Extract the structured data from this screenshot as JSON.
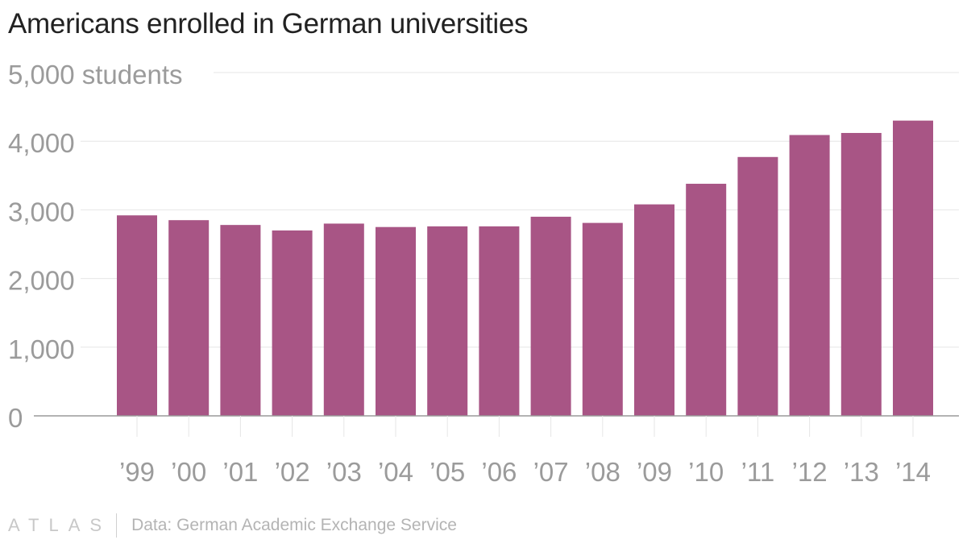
{
  "title": "Americans enrolled in German universities",
  "footer": {
    "logo": "ATLAS",
    "source": "Data: German Academic Exchange Service"
  },
  "colors": {
    "bar": "#a85585",
    "grid": "#e6e6e6",
    "axis": "#9a9a9a",
    "tick_text": "#9b9b9b"
  },
  "chart_data": {
    "type": "bar",
    "title": "Americans enrolled in German universities",
    "xlabel": "",
    "ylabel": "students",
    "ylim": [
      0,
      5000
    ],
    "y_ticks": [
      0,
      1000,
      2000,
      3000,
      4000,
      5000
    ],
    "y_tick_labels": [
      "0",
      "1,000",
      "2,000",
      "3,000",
      "4,000",
      "5,000 students"
    ],
    "categories": [
      "’99",
      "’00",
      "’01",
      "’02",
      "’03",
      "’04",
      "’05",
      "’06",
      "’07",
      "’08",
      "’09",
      "’10",
      "’11",
      "’12",
      "’13",
      "’14"
    ],
    "values": [
      2920,
      2850,
      2780,
      2700,
      2800,
      2750,
      2760,
      2760,
      2900,
      2810,
      3080,
      3380,
      3770,
      4090,
      4120,
      4300
    ]
  }
}
